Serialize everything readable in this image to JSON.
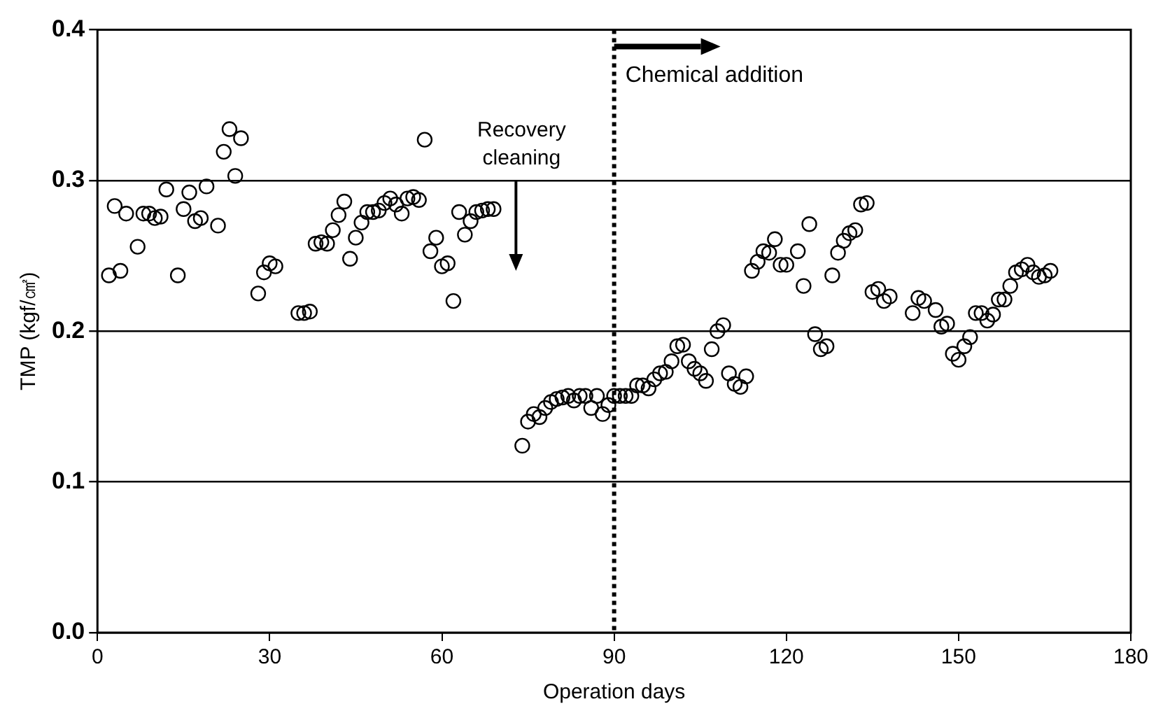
{
  "chart_data": {
    "type": "scatter",
    "xlabel": "Operation days",
    "ylabel": "TMP (kgf/㎠)",
    "xlim": [
      0,
      180
    ],
    "xticks": [
      0,
      30,
      60,
      90,
      120,
      150,
      180
    ],
    "ylim": [
      0,
      0.4
    ],
    "yticks": [
      {
        "value": 0,
        "label": "0.0"
      },
      {
        "value": 0.1,
        "label": "0.1"
      },
      {
        "value": 0.2,
        "label": "0.2"
      },
      {
        "value": 0.3,
        "label": "0.3"
      },
      {
        "value": 0.4,
        "label": "0.4"
      }
    ],
    "grid": "y",
    "legend": false,
    "marker": "circle",
    "ref_lines": [
      {
        "axis": "x",
        "value": 90,
        "label": "Chemical addition",
        "line_style": "dotted",
        "color": "#000000"
      }
    ],
    "annotations": [
      "Recovery cleaning"
    ],
    "series": [
      {
        "color": "#000000",
        "x": [
          2,
          3,
          4,
          5,
          7,
          8,
          9,
          10,
          11,
          12,
          14,
          15,
          16,
          17,
          18,
          19,
          21,
          22,
          23,
          24,
          25,
          28,
          29,
          30,
          31,
          35,
          36,
          37,
          38,
          39,
          40,
          41,
          42,
          43,
          44,
          45,
          46,
          47,
          48,
          49,
          50,
          51,
          52,
          53,
          54,
          55,
          56,
          57,
          58,
          59,
          60,
          61,
          62,
          63,
          64,
          65,
          66,
          67,
          68,
          69,
          74,
          75,
          76,
          77,
          78,
          79,
          80,
          81,
          82,
          83,
          84,
          85,
          86,
          87,
          88,
          89,
          90,
          91,
          92,
          93,
          94,
          95,
          96,
          97,
          98,
          99,
          100,
          101,
          102,
          103,
          104,
          105,
          106,
          107,
          108,
          109,
          110,
          111,
          112,
          113,
          114,
          115,
          116,
          117,
          118,
          119,
          120,
          122,
          123,
          124,
          125,
          126,
          127,
          128,
          129,
          130,
          131,
          132,
          133,
          134,
          135,
          136,
          137,
          138,
          142,
          143,
          144,
          146,
          147,
          148,
          149,
          150,
          151,
          152,
          153,
          154,
          155,
          156,
          157,
          158,
          159,
          160,
          161,
          162,
          163,
          164,
          165,
          166
        ],
        "values": [
          0.237,
          0.283,
          0.24,
          0.278,
          0.256,
          0.278,
          0.278,
          0.275,
          0.276,
          0.294,
          0.237,
          0.281,
          0.292,
          0.273,
          0.275,
          0.296,
          0.27,
          0.319,
          0.334,
          0.303,
          0.328,
          0.225,
          0.239,
          0.245,
          0.243,
          0.212,
          0.212,
          0.213,
          0.258,
          0.259,
          0.258,
          0.267,
          0.277,
          0.286,
          0.248,
          0.262,
          0.272,
          0.279,
          0.279,
          0.28,
          0.285,
          0.288,
          0.284,
          0.278,
          0.288,
          0.289,
          0.287,
          0.327,
          0.253,
          0.262,
          0.243,
          0.245,
          0.22,
          0.279,
          0.264,
          0.273,
          0.279,
          0.28,
          0.281,
          0.281,
          0.124,
          0.14,
          0.145,
          0.143,
          0.149,
          0.153,
          0.155,
          0.156,
          0.157,
          0.154,
          0.157,
          0.157,
          0.149,
          0.157,
          0.145,
          0.151,
          0.157,
          0.157,
          0.157,
          0.157,
          0.164,
          0.164,
          0.162,
          0.168,
          0.172,
          0.173,
          0.18,
          0.19,
          0.191,
          0.18,
          0.175,
          0.172,
          0.167,
          0.188,
          0.2,
          0.204,
          0.172,
          0.165,
          0.163,
          0.17,
          0.24,
          0.246,
          0.253,
          0.252,
          0.261,
          0.244,
          0.244,
          0.253,
          0.23,
          0.271,
          0.198,
          0.188,
          0.19,
          0.237,
          0.252,
          0.26,
          0.265,
          0.267,
          0.284,
          0.285,
          0.226,
          0.228,
          0.22,
          0.223,
          0.212,
          0.222,
          0.22,
          0.214,
          0.203,
          0.205,
          0.185,
          0.181,
          0.19,
          0.196,
          0.212,
          0.212,
          0.207,
          0.211,
          0.221,
          0.221,
          0.23,
          0.239,
          0.241,
          0.244,
          0.239,
          0.236,
          0.237,
          0.24
        ]
      }
    ]
  }
}
